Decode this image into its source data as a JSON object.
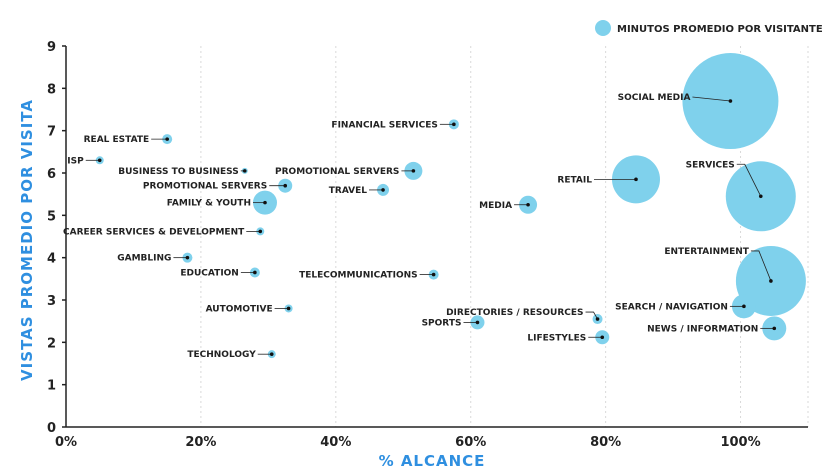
{
  "chart_data": {
    "type": "scatter",
    "xlabel": "% ALCANCE",
    "ylabel": "VISTAS PROMEDIO POR VISITA",
    "legend": {
      "label": "MINUTOS PROMEDIO POR VISITANTE",
      "position": "top-right"
    },
    "xlim": [
      0,
      110
    ],
    "ylim": [
      0,
      9
    ],
    "x_ticks": [
      {
        "value": 0,
        "label": "0%"
      },
      {
        "value": 20,
        "label": "20%"
      },
      {
        "value": 40,
        "label": "40%"
      },
      {
        "value": 60,
        "label": "60%"
      },
      {
        "value": 80,
        "label": "80%"
      },
      {
        "value": 100,
        "label": "100%"
      }
    ],
    "y_ticks": [
      0,
      1,
      2,
      3,
      4,
      5,
      6,
      7,
      8,
      9
    ],
    "grid": "vertical",
    "color": "#7fd1ec",
    "points": [
      {
        "label": "ISP",
        "x": 5,
        "y": 6.3,
        "size": 4
      },
      {
        "label": "REAL ESTATE",
        "x": 15,
        "y": 6.8,
        "size": 5
      },
      {
        "label": "BUSINESS TO BUSINESS",
        "x": 26.5,
        "y": 6.05,
        "size": 3
      },
      {
        "label": "PROMOTIONAL SERVERS",
        "x": 32.5,
        "y": 5.7,
        "size": 7
      },
      {
        "label": "FAMILY & YOUTH",
        "x": 29.5,
        "y": 5.3,
        "size": 12
      },
      {
        "label": "CAREER SERVICES & DEVELOPMENT",
        "x": 28.8,
        "y": 4.62,
        "size": 4
      },
      {
        "label": "GAMBLING",
        "x": 18,
        "y": 4.0,
        "size": 5
      },
      {
        "label": "EDUCATION",
        "x": 28,
        "y": 3.65,
        "size": 5
      },
      {
        "label": "AUTOMOTIVE",
        "x": 33,
        "y": 2.8,
        "size": 4
      },
      {
        "label": "TECHNOLOGY",
        "x": 30.5,
        "y": 1.72,
        "size": 4
      },
      {
        "label": "FINANCIAL SERVICES",
        "x": 57.5,
        "y": 7.15,
        "size": 5
      },
      {
        "label": "PROMOTIONAL SERVERS",
        "x": 51.5,
        "y": 6.05,
        "size": 9
      },
      {
        "label": "TRAVEL",
        "x": 47,
        "y": 5.6,
        "size": 6
      },
      {
        "label": "MEDIA",
        "x": 68.5,
        "y": 5.25,
        "size": 9
      },
      {
        "label": "TELECOMMUNICATIONS",
        "x": 54.5,
        "y": 3.6,
        "size": 5
      },
      {
        "label": "SPORTS",
        "x": 61,
        "y": 2.47,
        "size": 7
      },
      {
        "label": "DIRECTORIES / RESOURCES",
        "x": 78.8,
        "y": 2.55,
        "size": 5
      },
      {
        "label": "LIFESTYLES",
        "x": 79.5,
        "y": 2.12,
        "size": 7
      },
      {
        "label": "SOCIAL MEDIA",
        "x": 98.5,
        "y": 7.7,
        "size": 48
      },
      {
        "label": "RETAIL",
        "x": 84.5,
        "y": 5.85,
        "size": 24
      },
      {
        "label": "SERVICES",
        "x": 103,
        "y": 5.45,
        "size": 35
      },
      {
        "label": "ENTERTAINMENT",
        "x": 104.5,
        "y": 3.45,
        "size": 35
      },
      {
        "label": "SEARCH / NAVIGATION",
        "x": 100.5,
        "y": 2.85,
        "size": 12
      },
      {
        "label": "NEWS / INFORMATION",
        "x": 105,
        "y": 2.33,
        "size": 12
      }
    ]
  }
}
